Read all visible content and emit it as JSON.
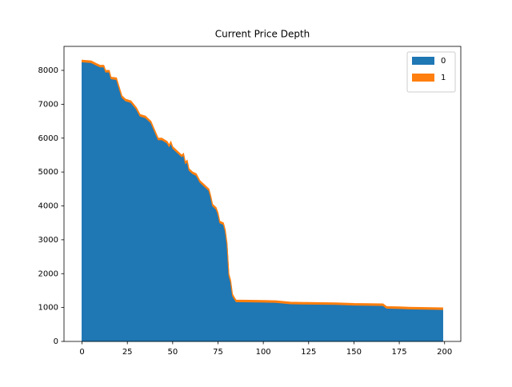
{
  "chart_data": {
    "type": "stacked_area",
    "title": "Current Price Depth",
    "x": [
      0,
      5,
      8,
      10,
      12,
      13,
      15,
      16,
      19,
      20,
      22,
      24,
      27,
      30,
      32,
      35,
      37,
      38,
      40,
      42,
      44,
      47,
      48,
      49,
      50,
      52,
      54,
      55,
      56,
      57,
      58,
      59,
      61,
      63,
      65,
      67,
      69,
      70,
      71,
      72,
      74,
      75,
      76,
      78,
      79,
      80,
      81,
      82,
      83,
      84,
      85,
      100,
      107,
      115,
      125,
      140,
      150,
      166,
      168,
      175,
      180,
      190,
      199
    ],
    "series": [
      {
        "name": "0",
        "color": "#1f77b4",
        "values": [
          8250,
          8230,
          8150,
          8100,
          8100,
          7950,
          7950,
          7750,
          7730,
          7550,
          7200,
          7100,
          7050,
          6850,
          6650,
          6600,
          6500,
          6450,
          6200,
          5950,
          5950,
          5850,
          5750,
          5850,
          5700,
          5600,
          5500,
          5450,
          5500,
          5250,
          5300,
          5050,
          4950,
          4900,
          4700,
          4600,
          4500,
          4450,
          4250,
          4000,
          3900,
          3750,
          3500,
          3450,
          3250,
          2850,
          1950,
          1750,
          1350,
          1250,
          1170,
          1160,
          1150,
          1110,
          1100,
          1090,
          1070,
          1060,
          980,
          970,
          960,
          950,
          940
        ]
      },
      {
        "name": "1",
        "color": "#ff7f0e",
        "values": [
          50,
          50,
          50,
          50,
          50,
          50,
          50,
          50,
          50,
          50,
          50,
          50,
          50,
          50,
          50,
          50,
          50,
          50,
          50,
          50,
          50,
          50,
          50,
          50,
          50,
          50,
          50,
          50,
          50,
          50,
          50,
          50,
          50,
          50,
          50,
          50,
          50,
          50,
          50,
          50,
          50,
          50,
          50,
          50,
          50,
          50,
          50,
          50,
          50,
          50,
          50,
          50,
          50,
          50,
          50,
          50,
          50,
          50,
          50,
          50,
          50,
          50,
          50
        ]
      }
    ],
    "xlim": [
      -9.95,
      208.95
    ],
    "xticks": [
      0,
      25,
      50,
      75,
      100,
      125,
      150,
      175,
      200
    ],
    "ylim": [
      0,
      8708
    ],
    "yticks": [
      0,
      1000,
      2000,
      3000,
      4000,
      5000,
      6000,
      7000,
      8000
    ],
    "legend": "upper right"
  }
}
